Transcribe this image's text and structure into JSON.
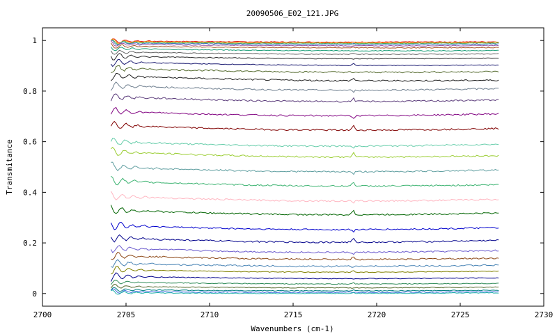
{
  "chart_data": {
    "type": "line",
    "title": "20090506_E02_121.JPG",
    "xlabel": "Wavenumbers (cm-1)",
    "ylabel": "Transmitance",
    "xlim": [
      2700,
      2730
    ],
    "ylim": [
      -0.05,
      1.05
    ],
    "x_ticks": [
      "2700",
      "2705",
      "2710",
      "2715",
      "2720",
      "2725",
      "2730"
    ],
    "y_ticks": [
      "0",
      "0.2",
      "0.4",
      "0.6",
      "0.8",
      "1"
    ],
    "x_range": [
      2704.1,
      2727.3
    ],
    "grid": false,
    "legend": "none",
    "series": [
      {
        "color": "#e41a1c",
        "values": [
          0.998,
          0.995
        ]
      },
      {
        "color": "#ff7f00",
        "values": [
          0.996,
          0.993
        ]
      },
      {
        "color": "#4daf4a",
        "values": [
          0.993,
          0.99
        ]
      },
      {
        "color": "#377eb8",
        "values": [
          0.99,
          0.986
        ]
      },
      {
        "color": "#984ea3",
        "values": [
          0.985,
          0.98
        ]
      },
      {
        "color": "#a65628",
        "values": [
          0.978,
          0.972
        ]
      },
      {
        "color": "#1b9e77",
        "values": [
          0.968,
          0.96
        ]
      },
      {
        "color": "#666666",
        "values": [
          0.955,
          0.947
        ]
      },
      {
        "color": "#2a2a2a",
        "values": [
          0.938,
          0.93
        ]
      },
      {
        "color": "#191970",
        "values": [
          0.915,
          0.903
        ]
      },
      {
        "color": "#556b2f",
        "values": [
          0.89,
          0.877
        ]
      },
      {
        "color": "#222222",
        "values": [
          0.86,
          0.843
        ]
      },
      {
        "color": "#708090",
        "values": [
          0.822,
          0.81
        ]
      },
      {
        "color": "#5a3a7a",
        "values": [
          0.778,
          0.765
        ]
      },
      {
        "color": "#800080",
        "values": [
          0.72,
          0.71
        ]
      },
      {
        "color": "#800000",
        "values": [
          0.665,
          0.652
        ]
      },
      {
        "color": "#66cdaa",
        "values": [
          0.6,
          0.59
        ]
      },
      {
        "color": "#9acd32",
        "values": [
          0.56,
          0.545
        ]
      },
      {
        "color": "#5f9ea0",
        "values": [
          0.5,
          0.488
        ]
      },
      {
        "color": "#3cb371",
        "values": [
          0.445,
          0.43
        ]
      },
      {
        "color": "#ffb6c1",
        "values": [
          0.385,
          0.372
        ]
      },
      {
        "color": "#006400",
        "values": [
          0.33,
          0.318
        ]
      },
      {
        "color": "#0000cd",
        "values": [
          0.27,
          0.26
        ]
      },
      {
        "color": "#00008b",
        "values": [
          0.22,
          0.21
        ]
      },
      {
        "color": "#6a5acd",
        "values": [
          0.18,
          0.17
        ]
      },
      {
        "color": "#8b4513",
        "values": [
          0.15,
          0.14
        ]
      },
      {
        "color": "#4682b4",
        "values": [
          0.12,
          0.112
        ]
      },
      {
        "color": "#808000",
        "values": [
          0.095,
          0.088
        ]
      },
      {
        "color": "#00008b",
        "values": [
          0.068,
          0.062
        ]
      },
      {
        "color": "#2e8b57",
        "values": [
          0.045,
          0.04
        ]
      },
      {
        "color": "#556b2f",
        "values": [
          0.028,
          0.025
        ]
      },
      {
        "color": "#008080",
        "values": [
          0.015,
          0.013
        ]
      },
      {
        "color": "#4169e1",
        "values": [
          0.008,
          0.007
        ]
      },
      {
        "color": "#20b2aa",
        "values": [
          0.003,
          0.003
        ]
      }
    ]
  }
}
